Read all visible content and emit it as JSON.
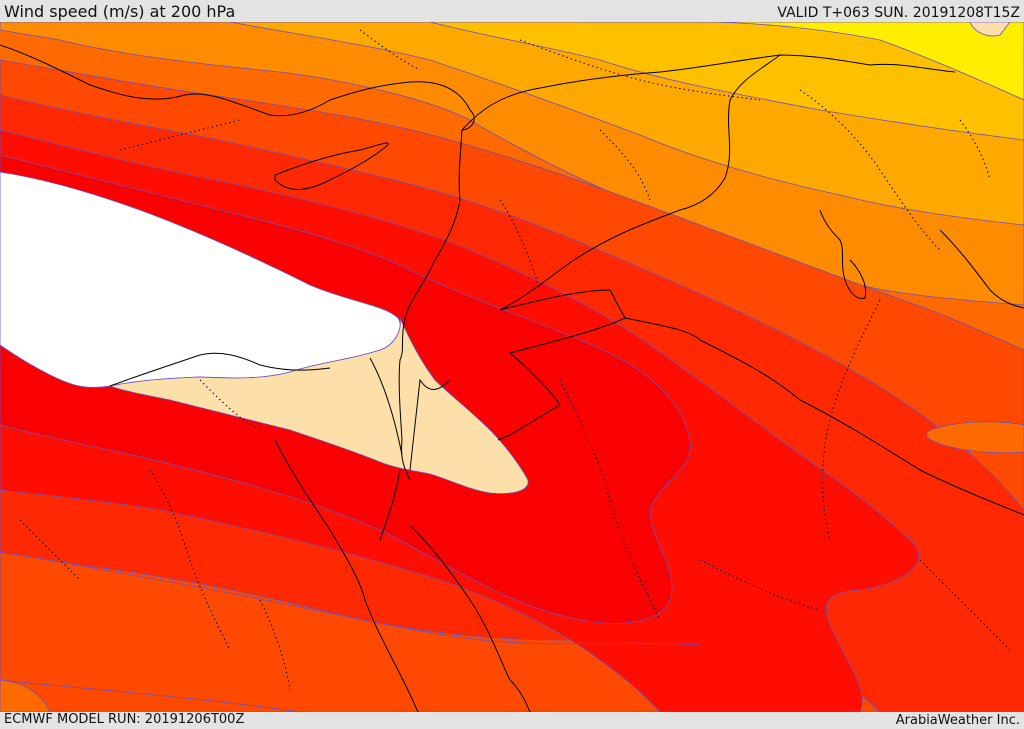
{
  "header": {
    "title": "Wind speed (m/s) at 200 hPa",
    "valid": "VALID T+063 SUN. 20191208T15Z"
  },
  "footer": {
    "model_run": "ECMWF MODEL RUN: 20191206T00Z",
    "credit": "ArabiaWeather Inc."
  },
  "colors": {
    "yellow": "#ffee00",
    "gold": "#ffc000",
    "amber": "#ffa800",
    "orange_light": "#ff8c00",
    "orange": "#ff6a00",
    "orange_red": "#ff4800",
    "red_orange": "#ff2800",
    "red": "#ff0d00",
    "jet_core": "#ffffff",
    "low_speed": "#fddfaa",
    "contour": "#6b50c0",
    "border": "#000000"
  }
}
